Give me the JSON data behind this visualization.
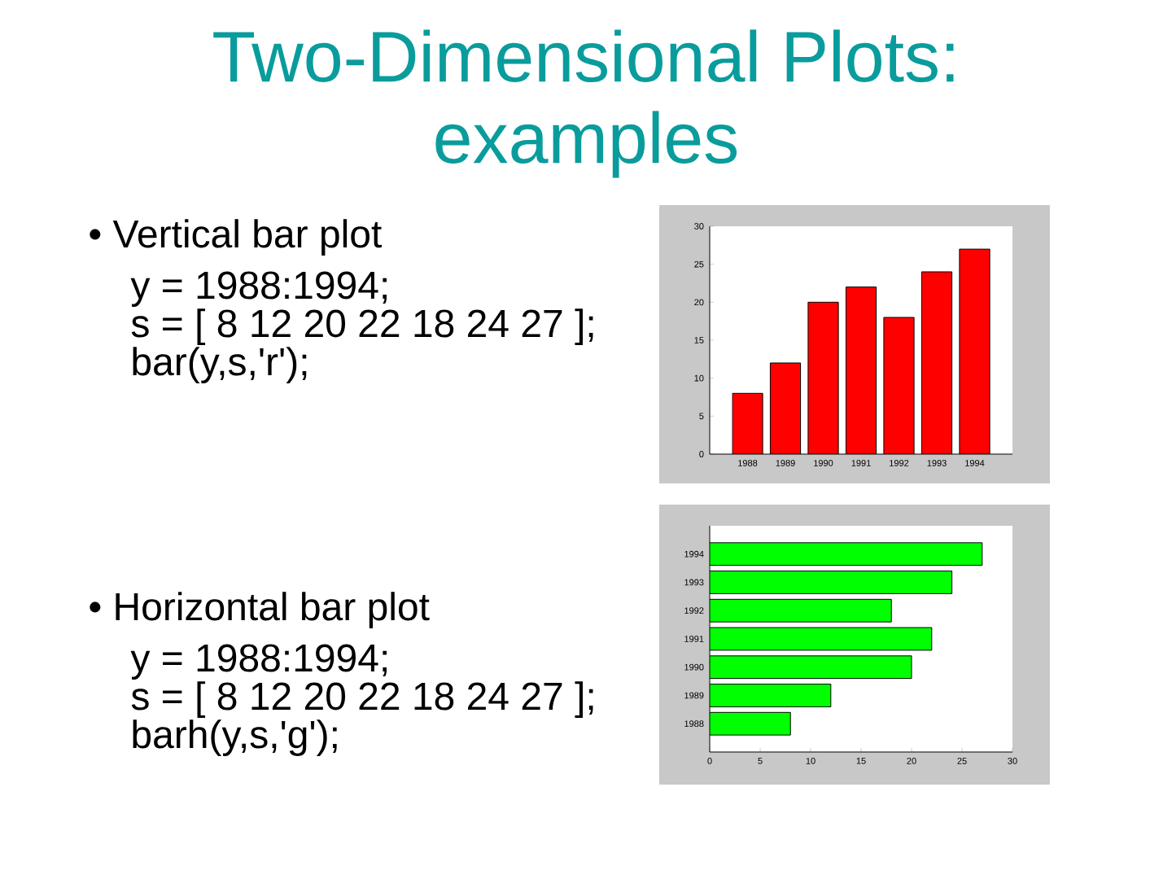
{
  "chart_data": [
    {
      "type": "other",
      "title": "Two-Dimensional Plots: examples"
    },
    {
      "type": "bar",
      "annotations": [
        "• Vertical bar plot",
        "y = 1988:1994;",
        "s = [ 8 12 20 22 18 24 27 ];",
        "bar(y,s,'r');"
      ],
      "categories": [
        "1988",
        "1989",
        "1990",
        "1991",
        "1992",
        "1993",
        "1994"
      ],
      "values": [
        8,
        12,
        20,
        22,
        18,
        24,
        27
      ],
      "color": "#ff0000",
      "ylim": [
        0,
        30
      ],
      "yticks": [
        0,
        5,
        10,
        15,
        20,
        25,
        30
      ]
    },
    {
      "type": "bar",
      "orientation": "horizontal",
      "annotations": [
        "• Horizontal bar plot",
        "y = 1988:1994;",
        "s = [ 8 12 20 22 18 24 27 ];",
        "barh(y,s,'g');"
      ],
      "categories": [
        "1994",
        "1993",
        "1992",
        "1991",
        "1990",
        "1989",
        "1988"
      ],
      "values": [
        27,
        24,
        18,
        22,
        20,
        12,
        8
      ],
      "color": "#00ff00",
      "xlim": [
        0,
        30
      ],
      "xticks": [
        0,
        5,
        10,
        15,
        20,
        25,
        30
      ]
    }
  ]
}
